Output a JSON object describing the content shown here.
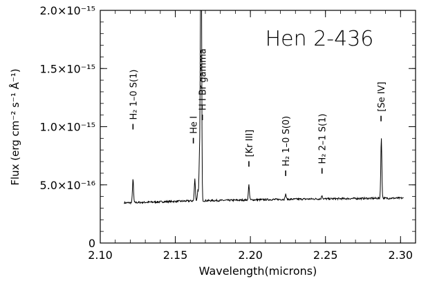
{
  "chart_data": {
    "type": "line",
    "title": "Hen 2-436",
    "xlabel": "Wavelength(microns)",
    "ylabel": "Flux (erg cm⁻² s⁻¹ Å⁻¹)",
    "xlim": [
      2.1,
      2.31
    ],
    "ylim": [
      0,
      2e-15
    ],
    "x_ticks": [
      {
        "value": 2.1,
        "label": "2.10"
      },
      {
        "value": 2.15,
        "label": "2.15"
      },
      {
        "value": 2.2,
        "label": "2.20"
      },
      {
        "value": 2.25,
        "label": "2.25"
      },
      {
        "value": 2.3,
        "label": "2.30"
      }
    ],
    "y_ticks": [
      {
        "value": 0,
        "label": "0"
      },
      {
        "value": 5e-16,
        "label": "5.0×10⁻¹⁶"
      },
      {
        "value": 1e-15,
        "label": "1.0×10⁻¹⁵"
      },
      {
        "value": 1.5e-15,
        "label": "1.5×10⁻¹⁵"
      },
      {
        "value": 2e-15,
        "label": "2.0×10⁻¹⁵"
      }
    ],
    "continuum": [
      [
        2.116,
        3.45e-16
      ],
      [
        2.13,
        3.5e-16
      ],
      [
        2.15,
        3.58e-16
      ],
      [
        2.16,
        3.62e-16
      ],
      [
        2.175,
        3.65e-16
      ],
      [
        2.19,
        3.68e-16
      ],
      [
        2.205,
        3.72e-16
      ],
      [
        2.22,
        3.75e-16
      ],
      [
        2.235,
        3.78e-16
      ],
      [
        2.25,
        3.8e-16
      ],
      [
        2.265,
        3.82e-16
      ],
      [
        2.28,
        3.84e-16
      ],
      [
        2.302,
        3.86e-16
      ]
    ],
    "series": [
      {
        "values_note": "",
        "peaks": [
          {
            "x": 2.1218,
            "y": 5.5e-16
          },
          {
            "x": 2.163,
            "y": 5.5e-16
          },
          {
            "x": 2.165,
            "y": 4.5e-16
          },
          {
            "x": 2.1661,
            "y": 7.3e-16
          },
          {
            "x": 2.167,
            "y": 2e-15
          },
          {
            "x": 2.1672,
            "y": 2e-15
          },
          {
            "x": 2.199,
            "y": 5e-16
          },
          {
            "x": 2.2235,
            "y": 4.2e-16
          },
          {
            "x": 2.2477,
            "y": 4.1e-16
          },
          {
            "x": 2.2872,
            "y": 9e-16
          }
        ]
      }
    ],
    "line_ids": [
      {
        "x": 2.1218,
        "tick_y": 1e-15,
        "label": "H₂ 1–0 S(1)"
      },
      {
        "x": 2.162,
        "tick_y": 8.8e-16,
        "label": "He I"
      },
      {
        "x": 2.168,
        "tick_y": 1.08e-15,
        "label": "H I Br gamma"
      },
      {
        "x": 2.199,
        "tick_y": 6.8e-16,
        "label": "[Kr III]"
      },
      {
        "x": 2.2235,
        "tick_y": 6e-16,
        "label": "H₂ 1–0 S(0)"
      },
      {
        "x": 2.2477,
        "tick_y": 6.2e-16,
        "label": "H₂ 2–1 S(1)"
      },
      {
        "x": 2.287,
        "tick_y": 1.07e-15,
        "label": "[Se IV]"
      }
    ]
  }
}
